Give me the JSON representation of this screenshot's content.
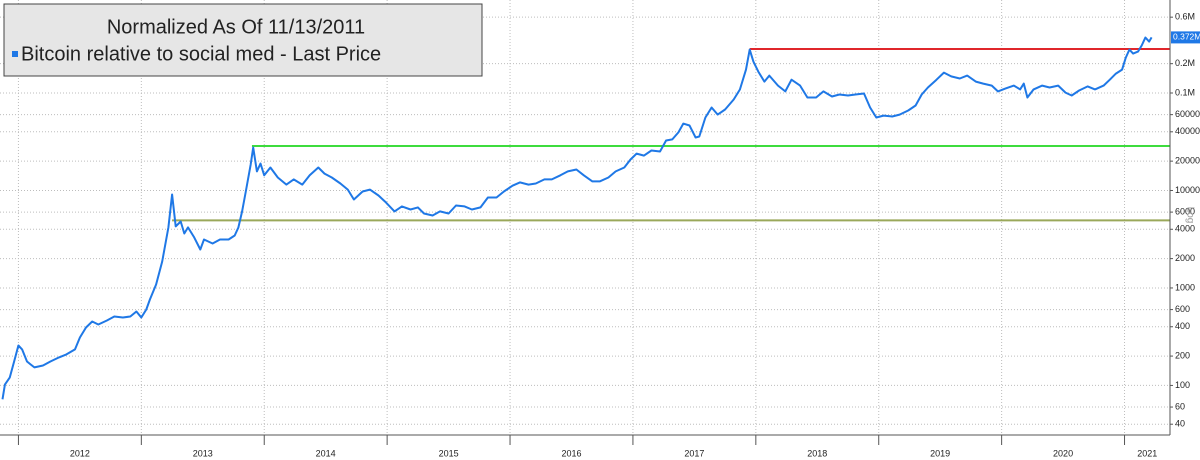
{
  "chart_data": {
    "type": "line",
    "legend_title": "Normalized As Of 11/13/2011",
    "log_scale": true,
    "scale_label": "Log",
    "grid": true,
    "xlim": [
      2011.85,
      2021.37
    ],
    "xticks": [
      2012,
      2013,
      2014,
      2015,
      2016,
      2017,
      2018,
      2019,
      2020,
      2021
    ],
    "ylim": [
      31,
      900000
    ],
    "yticks": [
      40,
      60,
      100,
      200,
      400,
      600,
      1000,
      2000,
      4000,
      6000,
      10000,
      20000,
      40000,
      60000,
      {
        "value": 100000,
        "label": "0.1M"
      },
      {
        "value": 200000,
        "label": "0.2M"
      },
      {
        "value": 600000,
        "label": "0.6M"
      }
    ],
    "last_price": {
      "value": 372000,
      "label": "0.372M"
    },
    "reference_lines": [
      {
        "value": 283000,
        "start": 2017.95,
        "color": "#e0262b"
      },
      {
        "value": 28600,
        "start": 2013.9,
        "color": "#3ddc3d"
      },
      {
        "value": 4930,
        "start": 2013.25,
        "color": "#9aa85a"
      }
    ],
    "x": [
      2011.87,
      2011.89,
      2011.93,
      2011.97,
      2012.0,
      2012.03,
      2012.07,
      2012.1,
      2012.13,
      2012.2,
      2012.26,
      2012.33,
      2012.39,
      2012.46,
      2012.5,
      2012.55,
      2012.6,
      2012.65,
      2012.72,
      2012.78,
      2012.85,
      2012.91,
      2012.96,
      2013.0,
      2013.04,
      2013.07,
      2013.12,
      2013.17,
      2013.22,
      2013.25,
      2013.28,
      2013.32,
      2013.35,
      2013.38,
      2013.43,
      2013.48,
      2013.51,
      2013.58,
      2013.64,
      2013.71,
      2013.76,
      2013.79,
      2013.82,
      2013.85,
      2013.89,
      2013.91,
      2013.94,
      2013.97,
      2014.0,
      2014.05,
      2014.11,
      2014.18,
      2014.24,
      2014.31,
      2014.37,
      2014.44,
      2014.49,
      2014.55,
      2014.62,
      2014.68,
      2014.73,
      2014.8,
      2014.86,
      2014.93,
      2014.99,
      2015.06,
      2015.12,
      2015.19,
      2015.25,
      2015.3,
      2015.37,
      2015.43,
      2015.5,
      2015.56,
      2015.63,
      2015.69,
      2015.76,
      2015.82,
      2015.89,
      2015.95,
      2016.02,
      2016.08,
      2016.15,
      2016.21,
      2016.28,
      2016.34,
      2016.41,
      2016.47,
      2016.54,
      2016.6,
      2016.67,
      2016.73,
      2016.8,
      2016.86,
      2016.93,
      2016.98,
      2017.03,
      2017.09,
      2017.15,
      2017.22,
      2017.27,
      2017.32,
      2017.37,
      2017.41,
      2017.46,
      2017.51,
      2017.54,
      2017.59,
      2017.64,
      2017.69,
      2017.75,
      2017.82,
      2017.87,
      2017.92,
      2017.95,
      2017.98,
      2018.02,
      2018.07,
      2018.11,
      2018.18,
      2018.24,
      2018.29,
      2018.36,
      2018.42,
      2018.49,
      2018.55,
      2018.62,
      2018.68,
      2018.75,
      2018.81,
      2018.88,
      2018.93,
      2018.98,
      2019.04,
      2019.11,
      2019.17,
      2019.24,
      2019.3,
      2019.35,
      2019.4,
      2019.47,
      2019.53,
      2019.59,
      2019.66,
      2019.72,
      2019.79,
      2019.85,
      2019.92,
      2019.97,
      2020.03,
      2020.1,
      2020.15,
      2020.18,
      2020.21,
      2020.26,
      2020.33,
      2020.39,
      2020.46,
      2020.52,
      2020.57,
      2020.63,
      2020.7,
      2020.76,
      2020.83,
      2020.88,
      2020.93,
      2020.98,
      2021.01,
      2021.04,
      2021.07,
      2021.11,
      2021.14,
      2021.17,
      2021.2,
      2021.22
    ],
    "series": [
      {
        "name": "Bitcoin relative to social med - Last Price",
        "color": "#1f78e6",
        "values": [
          72,
          102,
          121,
          185,
          257,
          234,
          176,
          164,
          153,
          160,
          176,
          194,
          208,
          234,
          310,
          393,
          453,
          422,
          464,
          510,
          498,
          510,
          574,
          498,
          601,
          762,
          1086,
          1870,
          4180,
          9100,
          4280,
          4810,
          3620,
          4180,
          3300,
          2480,
          3140,
          2860,
          3140,
          3140,
          3450,
          4180,
          6100,
          9770,
          18500,
          27600,
          15700,
          18900,
          14300,
          17200,
          13600,
          11500,
          13000,
          11500,
          14300,
          17200,
          14900,
          13600,
          11800,
          10200,
          8090,
          9770,
          10200,
          8890,
          7540,
          6100,
          6860,
          6380,
          6700,
          5810,
          5540,
          6100,
          5810,
          7020,
          6860,
          6380,
          6700,
          8480,
          8480,
          9770,
          11200,
          12100,
          11500,
          11800,
          13000,
          13000,
          14300,
          15700,
          16400,
          14300,
          12400,
          12400,
          13600,
          15700,
          17200,
          20800,
          23900,
          22800,
          25700,
          25100,
          32600,
          33400,
          39400,
          48600,
          46400,
          35000,
          35800,
          56100,
          71000,
          60100,
          67700,
          85700,
          108600,
          174000,
          279000,
          210000,
          166000,
          131000,
          151000,
          119000,
          104000,
          137000,
          119000,
          89900,
          89900,
          104000,
          92000,
          96500,
          94300,
          96500,
          98800,
          71000,
          56100,
          58700,
          57400,
          60100,
          66200,
          74500,
          96500,
          114000,
          137000,
          162000,
          148000,
          141000,
          151000,
          131000,
          125000,
          119000,
          104000,
          111000,
          119000,
          109000,
          125000,
          89900,
          109000,
          119000,
          114000,
          119000,
          101000,
          94300,
          106000,
          117000,
          109000,
          119000,
          137000,
          158000,
          174000,
          231000,
          279000,
          254000,
          266000,
          307000,
          371000,
          337000,
          372000
        ]
      }
    ]
  }
}
